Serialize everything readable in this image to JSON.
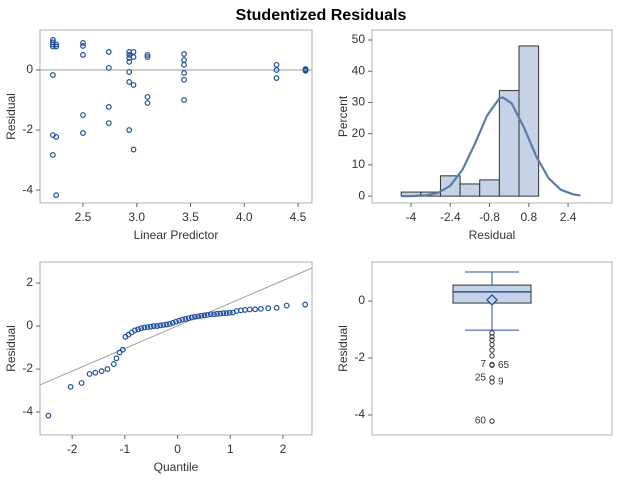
{
  "title": "Studentized Residuals",
  "chart_data": [
    {
      "type": "scatter",
      "xlabel": "Linear Predictor",
      "ylabel": "Residual",
      "color": "#1f4e9c",
      "x": [
        2.22,
        2.22,
        2.22,
        2.22,
        2.22,
        2.22,
        2.22,
        2.25,
        2.25,
        2.25,
        2.25,
        2.5,
        2.5,
        2.5,
        2.5,
        2.5,
        2.74,
        2.74,
        2.74,
        2.74,
        2.93,
        2.93,
        2.93,
        2.93,
        2.93,
        2.93,
        2.93,
        2.97,
        2.97,
        2.97,
        2.97,
        3.1,
        3.1,
        3.1,
        3.1,
        3.44,
        3.44,
        3.44,
        3.44,
        3.44,
        3.44,
        4.3,
        4.3,
        4.3,
        4.57,
        4.57,
        4.57
      ],
      "values": [
        1.0,
        0.92,
        0.85,
        0.78,
        -0.17,
        -2.17,
        -2.83,
        0.85,
        0.78,
        -2.23,
        -4.17,
        0.9,
        0.8,
        0.5,
        -1.5,
        -2.1,
        0.6,
        0.07,
        -1.23,
        -1.77,
        0.6,
        0.5,
        0.4,
        0.27,
        -0.07,
        -0.4,
        -2.0,
        0.6,
        0.43,
        -0.5,
        -2.65,
        0.5,
        0.43,
        -0.9,
        -1.1,
        0.53,
        0.33,
        0.17,
        -0.1,
        -0.33,
        -1.0,
        0.17,
        0.0,
        -0.27,
        0.03,
        0.0,
        -0.03
      ],
      "reference_line": {
        "x": [
          2.1,
          4.63
        ],
        "values": [
          0,
          0
        ],
        "color": "#999999"
      },
      "xlim": [
        2.1,
        4.63
      ],
      "ylim": [
        -4.43,
        1.33
      ],
      "xticks": [
        2.5,
        {
          "value": 3,
          "label": "3.0"
        },
        3.5,
        {
          "value": 4,
          "label": "4.0"
        },
        4.5
      ],
      "yticks": [
        -4,
        -2,
        0
      ]
    },
    {
      "type": "histogram",
      "xlabel": "Residual",
      "ylabel": "Percent",
      "color": "#c6d3e6",
      "bins": [
        -4.4,
        -3.6,
        -2.8,
        -2.0,
        -1.2,
        -0.4,
        0.4,
        1.2
      ],
      "values": [
        1.3,
        1.3,
        6.5,
        3.9,
        5.2,
        33.8,
        48.1
      ],
      "curve": {
        "x": [
          -4.4,
          -3.9,
          -3.4,
          -2.9,
          -2.4,
          -1.9,
          -1.4,
          -0.9,
          -0.4,
          -0.26,
          0.1,
          0.6,
          1.1,
          1.6,
          2.1,
          2.6,
          2.9
        ],
        "values": [
          0.0,
          0.05,
          0.25,
          1.04,
          3.36,
          8.5,
          16.7,
          25.8,
          31.3,
          31.6,
          29.7,
          22.0,
          12.8,
          5.8,
          2.06,
          0.58,
          0.23
        ],
        "color": "#5d7ba8"
      },
      "xlim": [
        -5.59,
        4.19
      ],
      "ylim": [
        -2.2,
        53.2
      ],
      "xticks": [
        -4,
        -2.4,
        -0.8,
        0.8,
        2.4
      ],
      "yticks": [
        0,
        10,
        20,
        30,
        40,
        50
      ]
    },
    {
      "type": "scatter",
      "xlabel": "Quantile",
      "ylabel": "Residual",
      "color": "#1f4e9c",
      "x": [
        -2.45,
        -2.03,
        -1.82,
        -1.67,
        -1.56,
        -1.44,
        -1.33,
        -1.21,
        -1.16,
        -1.1,
        -1.04,
        -0.99,
        -0.93,
        -0.87,
        -0.81,
        -0.75,
        -0.69,
        -0.63,
        -0.57,
        -0.51,
        -0.45,
        -0.39,
        -0.33,
        -0.27,
        -0.21,
        -0.15,
        -0.09,
        -0.03,
        0.03,
        0.09,
        0.15,
        0.21,
        0.27,
        0.33,
        0.39,
        0.45,
        0.51,
        0.57,
        0.63,
        0.69,
        0.75,
        0.81,
        0.87,
        0.93,
        0.99,
        1.05,
        1.12,
        1.2,
        1.28,
        1.37,
        1.47,
        1.58,
        1.72,
        1.88,
        2.07,
        2.42
      ],
      "values": [
        -4.17,
        -2.83,
        -2.65,
        -2.23,
        -2.17,
        -2.1,
        -2.0,
        -1.77,
        -1.5,
        -1.23,
        -1.1,
        -0.5,
        -0.4,
        -0.3,
        -0.2,
        -0.15,
        -0.1,
        -0.07,
        -0.05,
        -0.03,
        0.0,
        0.0,
        0.03,
        0.05,
        0.07,
        0.1,
        0.15,
        0.2,
        0.25,
        0.3,
        0.33,
        0.37,
        0.4,
        0.43,
        0.45,
        0.48,
        0.5,
        0.52,
        0.55,
        0.55,
        0.57,
        0.58,
        0.6,
        0.6,
        0.62,
        0.63,
        0.7,
        0.73,
        0.75,
        0.77,
        0.78,
        0.8,
        0.83,
        0.85,
        0.95,
        1.0
      ],
      "reference_line": {
        "x": [
          -2.61,
          2.55
        ],
        "values": [
          -2.74,
          2.7
        ],
        "color": "#a0a0a0"
      },
      "xlim": [
        -2.61,
        2.55
      ],
      "ylim": [
        -5.07,
        2.98
      ],
      "xticks": [
        -2,
        -1,
        0,
        1,
        2
      ],
      "yticks": [
        -4,
        -2,
        0,
        2
      ]
    },
    {
      "type": "box",
      "ylabel": "Residual",
      "color": "#2850a0",
      "fill": "#c6d3e6",
      "whisker_high": 1.02,
      "q3": 0.56,
      "median": 0.32,
      "mean": 0.04,
      "q1": -0.07,
      "whisker_low": -1.02,
      "outliers": [
        -1.12,
        -1.25,
        -1.37,
        -1.53,
        -1.72,
        -1.92,
        -2.23,
        -2.25,
        -2.7,
        -2.84,
        -4.21
      ],
      "outlier_labels": [
        null,
        null,
        null,
        null,
        null,
        null,
        "7",
        "65",
        "25",
        "9",
        "60"
      ],
      "ylim": [
        -4.7,
        1.37
      ],
      "yticks": [
        -4,
        -2,
        0
      ]
    }
  ]
}
